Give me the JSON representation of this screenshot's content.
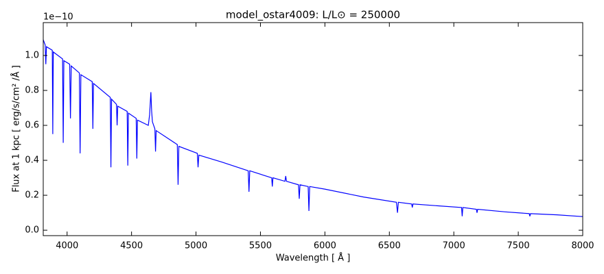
{
  "chart_data": {
    "type": "line",
    "title": "model_ostar4009: L/L⊙ = 250000",
    "x_label": "Wavelength [ Å ]",
    "y_label": "Flux at 1 kpc [ erg/s/cm² /Å ]",
    "y_offset_label": "1e−10",
    "color": "#0000ff",
    "x": [
      3815,
      3830,
      3835,
      3840,
      3885,
      3889,
      3893,
      3965,
      3970,
      3975,
      4020,
      4026,
      4032,
      4095,
      4101,
      4107,
      4195,
      4200,
      4205,
      4335,
      4340,
      4345,
      4383,
      4388,
      4393,
      4466,
      4471,
      4476,
      4536,
      4541,
      4546,
      4630,
      4640,
      4650,
      4656,
      4662,
      4681,
      4686,
      4691,
      4855,
      4861,
      4867,
      5010,
      5016,
      5022,
      5200,
      5405,
      5411,
      5417,
      5587,
      5592,
      5597,
      5690,
      5696,
      5702,
      5795,
      5801,
      5807,
      5870,
      5876,
      5882,
      6000,
      6300,
      6555,
      6563,
      6570,
      6673,
      6678,
      6683,
      7060,
      7065,
      7070,
      7175,
      7180,
      7185,
      7400,
      7585,
      7590,
      7595,
      7800,
      8000
    ],
    "values": [
      1.09,
      1.06,
      0.95,
      1.05,
      1.03,
      0.55,
      1.02,
      0.98,
      0.5,
      0.97,
      0.95,
      0.64,
      0.94,
      0.9,
      0.44,
      0.89,
      0.85,
      0.58,
      0.84,
      0.76,
      0.36,
      0.75,
      0.72,
      0.6,
      0.71,
      0.68,
      0.37,
      0.67,
      0.64,
      0.41,
      0.63,
      0.6,
      0.66,
      0.79,
      0.68,
      0.62,
      0.58,
      0.45,
      0.57,
      0.49,
      0.26,
      0.48,
      0.44,
      0.36,
      0.43,
      0.39,
      0.34,
      0.22,
      0.34,
      0.3,
      0.25,
      0.3,
      0.28,
      0.31,
      0.28,
      0.26,
      0.18,
      0.26,
      0.25,
      0.11,
      0.25,
      0.235,
      0.19,
      0.16,
      0.1,
      0.16,
      0.15,
      0.13,
      0.15,
      0.13,
      0.08,
      0.13,
      0.12,
      0.1,
      0.12,
      0.105,
      0.095,
      0.08,
      0.095,
      0.088,
      0.078
    ],
    "xlim": [
      3815,
      8000
    ],
    "ylim": [
      -0.031,
      1.188
    ],
    "xticks": [
      4000,
      4500,
      5000,
      5500,
      6000,
      6500,
      7000,
      7500,
      8000
    ],
    "yticks": [
      {
        "value": 0,
        "label": "0.0"
      },
      0.2,
      0.4,
      0.6,
      0.8,
      {
        "value": 1,
        "label": "1.0"
      }
    ]
  }
}
